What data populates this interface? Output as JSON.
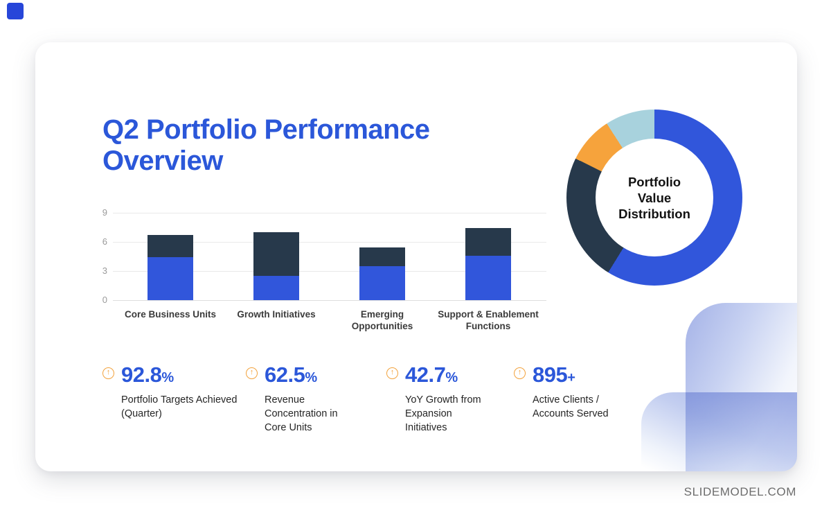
{
  "page": {
    "footer_brand": "SLIDEMODEL.COM"
  },
  "title": "Q2 Portfolio Performance Overview",
  "chart_data": [
    {
      "type": "bar",
      "stacked": true,
      "categories": [
        "Core Business Units",
        "Growth Initiatives",
        "Emerging Opportunities",
        "Support & Enablement Functions"
      ],
      "series": [
        {
          "name": "series-1-blue",
          "color": "#3156db",
          "values": [
            4.4,
            2.5,
            3.5,
            4.6
          ]
        },
        {
          "name": "series-2-navy",
          "color": "#27394b",
          "values": [
            2.3,
            4.5,
            1.9,
            2.8
          ]
        }
      ],
      "ylim": [
        0,
        9
      ],
      "yticks": [
        0,
        3,
        6,
        9
      ],
      "grid": true,
      "legend": "none",
      "title": ""
    },
    {
      "type": "pie",
      "donut": true,
      "center_label": "Portfolio Value Distribution",
      "segments": [
        {
          "name": "blue",
          "color": "#3156db",
          "value": 58.8
        },
        {
          "name": "navy",
          "color": "#27394b",
          "value": 23.5
        },
        {
          "name": "orange",
          "color": "#f6a33c",
          "value": 8.6
        },
        {
          "name": "light-blue",
          "color": "#a8d2dd",
          "value": 9.1
        }
      ],
      "legend": "none"
    }
  ],
  "kpis": [
    {
      "value": "92.8",
      "suffix": "%",
      "label": "Portfolio Targets Achieved (Quarter)"
    },
    {
      "value": "62.5",
      "suffix": "%",
      "label": "Revenue Concentration in Core Units"
    },
    {
      "value": "42.7",
      "suffix": "%",
      "label": "YoY Growth from Expansion Initiatives"
    },
    {
      "value": "895",
      "suffix": "+",
      "label": "Active Clients / Accounts Served"
    }
  ],
  "icons": {
    "kpi_trend_icon": "↑"
  },
  "colors": {
    "accent_blue": "#2b57d9",
    "bar_blue": "#3156db",
    "navy": "#27394b",
    "orange": "#f6a33c",
    "light_blue": "#a8d2dd",
    "kpi_icon_orange": "#f2a23c",
    "deco_periwinkle": "#a4b2e7"
  }
}
